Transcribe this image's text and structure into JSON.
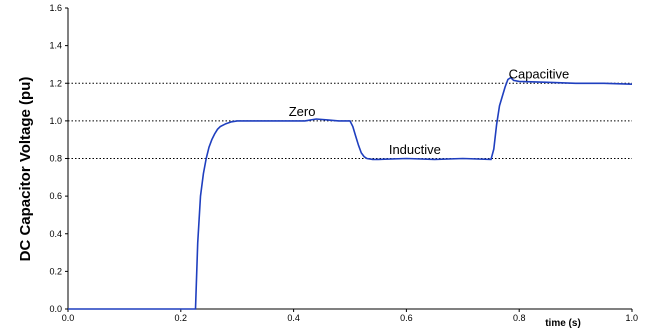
{
  "chart_data": {
    "type": "line",
    "title": "",
    "xlabel": "time (s)",
    "ylabel": "DC Capacitor Voltage (pu)",
    "xlim": [
      0.0,
      1.0
    ],
    "ylim": [
      0.0,
      1.6
    ],
    "x_ticks": [
      "0.0",
      "0.2",
      "0.4",
      "0.6",
      "0.8",
      "1.0"
    ],
    "y_ticks": [
      "0.0",
      "0.2",
      "0.4",
      "0.6",
      "0.8",
      "1.0",
      "1.2",
      "1.4",
      "1.6"
    ],
    "reference_lines": [
      0.8,
      1.0,
      1.2
    ],
    "line_color": "#1f3fbf",
    "annotations": [
      {
        "text": "Zero",
        "x": 0.415,
        "y": 1.025
      },
      {
        "text": "Inductive",
        "x": 0.615,
        "y": 0.825
      },
      {
        "text": "Capacitive",
        "x": 0.835,
        "y": 1.225
      }
    ],
    "series": [
      {
        "x": [
          0.0,
          0.22,
          0.226,
          0.23,
          0.235,
          0.24,
          0.245,
          0.25,
          0.255,
          0.26,
          0.265,
          0.27,
          0.28,
          0.29,
          0.3,
          0.32,
          0.35,
          0.4,
          0.42,
          0.44,
          0.46,
          0.48,
          0.5,
          0.505,
          0.51,
          0.515,
          0.52,
          0.525,
          0.53,
          0.54,
          0.55,
          0.6,
          0.65,
          0.7,
          0.75,
          0.755,
          0.76,
          0.765,
          0.77,
          0.775,
          0.78,
          0.785,
          0.79,
          0.8,
          0.85,
          0.9,
          0.95,
          1.0
        ],
        "values": [
          0.0,
          0.0,
          0.0,
          0.35,
          0.6,
          0.72,
          0.8,
          0.86,
          0.9,
          0.93,
          0.955,
          0.97,
          0.985,
          0.995,
          1.0,
          1.0,
          1.0,
          1.0,
          1.0,
          1.01,
          1.005,
          1.0,
          1.0,
          0.97,
          0.92,
          0.87,
          0.83,
          0.81,
          0.8,
          0.795,
          0.795,
          0.8,
          0.795,
          0.8,
          0.795,
          0.85,
          0.98,
          1.08,
          1.13,
          1.18,
          1.22,
          1.23,
          1.215,
          1.21,
          1.205,
          1.2,
          1.2,
          1.195
        ]
      }
    ]
  }
}
